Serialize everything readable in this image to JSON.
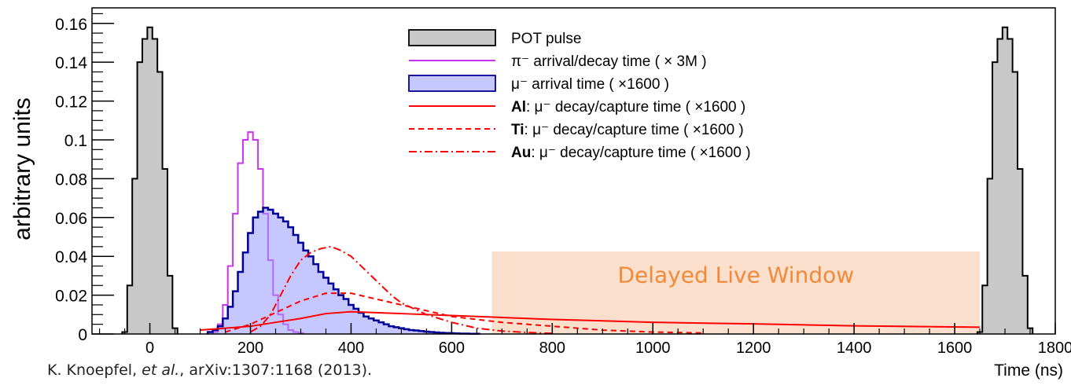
{
  "chart_data": {
    "type": "histogram",
    "xlabel": "Time (ns)",
    "ylabel": "arbitrary units",
    "xlim": [
      -115,
      1800
    ],
    "ylim": [
      0,
      0.168
    ],
    "x_ticks": [
      "0",
      "200",
      "400",
      "600",
      "800",
      "1000",
      "1200",
      "1400",
      "1600",
      "1800"
    ],
    "x_tick_values": [
      0,
      200,
      400,
      600,
      800,
      1000,
      1200,
      1400,
      1600,
      1800
    ],
    "y_ticks": [
      "0",
      "0.02",
      "0.04",
      "0.06",
      "0.08",
      "0.1",
      "0.12",
      "0.14",
      "0.16"
    ],
    "y_tick_values": [
      0,
      0.02,
      0.04,
      0.06,
      0.08,
      0.1,
      0.12,
      0.14,
      0.16
    ],
    "window": {
      "label": "Delayed Live Window",
      "x_range": [
        680,
        1650
      ],
      "y_max": 0.0425
    },
    "legend": [
      {
        "text": "POT pulse",
        "symbol": "fill-gray"
      },
      {
        "text": "π⁻ arrival/decay time ( × 3M )",
        "symbol": "line-magenta"
      },
      {
        "text": "μ⁻ arrival time ( ×1600 )",
        "symbol": "fill-blue"
      },
      {
        "bold": "Al",
        "text": ": μ⁻ decay/capture time ( ×1600 )",
        "symbol": "line-red-solid"
      },
      {
        "bold": "Ti",
        "text": ": μ⁻ decay/capture time ( ×1600 )",
        "symbol": "line-red-dashed"
      },
      {
        "bold": "Au",
        "text": ": μ⁻ decay/capture time ( ×1600 )",
        "symbol": "line-red-dashdot"
      }
    ],
    "series": [
      {
        "name": "POT pulse",
        "bin_width": 10,
        "x": [
          -50,
          -40,
          -30,
          -20,
          -10,
          0,
          10,
          20,
          30,
          40,
          50
        ],
        "values": [
          0.001,
          0.025,
          0.08,
          0.14,
          0.152,
          0.158,
          0.152,
          0.135,
          0.085,
          0.03,
          0.003
        ],
        "color": "#c8c8c8"
      },
      {
        "name": "POT pulse",
        "bin_width": 10,
        "x": [
          1650,
          1660,
          1670,
          1680,
          1690,
          1700,
          1710,
          1720,
          1730,
          1740,
          1750
        ],
        "values": [
          0.001,
          0.025,
          0.08,
          0.14,
          0.152,
          0.158,
          0.152,
          0.135,
          0.085,
          0.03,
          0.003
        ],
        "color": "#c8c8c8"
      },
      {
        "name": "π⁻ arrival/decay time ( × 3M )",
        "bin_width": 10,
        "x": [
          130,
          140,
          150,
          160,
          170,
          180,
          190,
          200,
          210,
          220,
          230,
          240,
          250,
          260,
          270,
          280,
          290,
          300
        ],
        "values": [
          0.001,
          0.005,
          0.015,
          0.035,
          0.062,
          0.088,
          0.1,
          0.104,
          0.1,
          0.085,
          0.062,
          0.038,
          0.02,
          0.01,
          0.005,
          0.002,
          0.001,
          0.0005
        ],
        "color": "#cc33ee"
      },
      {
        "name": "μ⁻ arrival time ( ×1600 )",
        "bin_width": 10,
        "x": [
          120,
          130,
          140,
          150,
          160,
          170,
          180,
          190,
          200,
          210,
          220,
          230,
          240,
          250,
          260,
          270,
          280,
          290,
          300,
          310,
          320,
          330,
          340,
          350,
          360,
          370,
          380,
          390,
          400,
          410,
          420,
          430,
          440,
          450,
          460,
          470,
          480,
          490,
          500,
          510,
          520,
          530,
          540,
          550,
          560,
          570,
          580,
          590,
          600,
          610,
          620,
          630,
          640,
          650
        ],
        "values": [
          0.001,
          0.002,
          0.004,
          0.008,
          0.014,
          0.022,
          0.032,
          0.042,
          0.052,
          0.06,
          0.063,
          0.065,
          0.064,
          0.062,
          0.06,
          0.058,
          0.055,
          0.051,
          0.047,
          0.043,
          0.04,
          0.036,
          0.032,
          0.029,
          0.026,
          0.023,
          0.02,
          0.018,
          0.015,
          0.013,
          0.011,
          0.009,
          0.008,
          0.007,
          0.006,
          0.005,
          0.004,
          0.0035,
          0.003,
          0.0025,
          0.002,
          0.0018,
          0.0015,
          0.0012,
          0.001,
          0.0008,
          0.0006,
          0.0005,
          0.0004,
          0.0003,
          0.0002,
          0.0002,
          0.0001,
          0.0001
        ],
        "color": "#000099"
      },
      {
        "name": "Al: μ⁻ decay/capture time ( ×1600 )",
        "x": [
          100,
          150,
          200,
          250,
          300,
          350,
          400,
          450,
          500,
          600,
          700,
          800,
          900,
          1000,
          1200,
          1400,
          1650
        ],
        "values": [
          0.002,
          0.003,
          0.004,
          0.006,
          0.008,
          0.0105,
          0.0115,
          0.011,
          0.0105,
          0.0095,
          0.0085,
          0.0075,
          0.0068,
          0.006,
          0.0052,
          0.0042,
          0.0035
        ],
        "color": "#ff0000"
      },
      {
        "name": "Ti: μ⁻ decay/capture time ( ×1600 )",
        "x": [
          150,
          200,
          250,
          300,
          350,
          400,
          450,
          500,
          550,
          600,
          700,
          800,
          900,
          1000,
          1100
        ],
        "values": [
          0.001,
          0.005,
          0.011,
          0.017,
          0.021,
          0.021,
          0.018,
          0.015,
          0.012,
          0.009,
          0.006,
          0.004,
          0.002,
          0.001,
          0.0005
        ],
        "color": "#ff0000"
      },
      {
        "name": "Au: μ⁻ decay/capture time ( ×1600 )",
        "x": [
          200,
          220,
          240,
          260,
          280,
          300,
          320,
          340,
          360,
          380,
          400,
          420,
          440,
          460,
          480,
          500,
          550,
          600,
          650,
          700,
          750,
          800
        ],
        "values": [
          0.001,
          0.004,
          0.01,
          0.02,
          0.03,
          0.038,
          0.042,
          0.044,
          0.045,
          0.043,
          0.04,
          0.035,
          0.03,
          0.025,
          0.02,
          0.016,
          0.01,
          0.006,
          0.003,
          0.0015,
          0.0008,
          0.0003
        ],
        "color": "#ff0000"
      }
    ]
  },
  "citation": {
    "author": "K. Knoepfel, ",
    "etal": "et al.",
    "rest": ", arXiv:1307:1168 (2013)."
  }
}
